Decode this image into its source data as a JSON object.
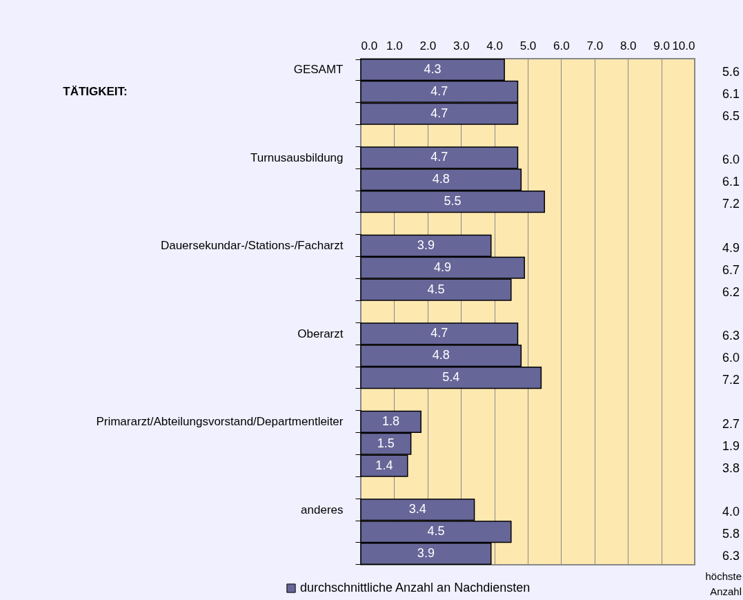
{
  "chart_data": {
    "type": "bar",
    "orientation": "horizontal",
    "categories": [
      "GESAMT",
      null,
      null,
      null,
      "Turnusausbildung",
      null,
      null,
      null,
      "Dauersekundar-/Stations-/Facharzt",
      null,
      null,
      null,
      "Oberarzt",
      null,
      null,
      null,
      "Primararzt/Abteilungsvorstand/Departmentleiter",
      null,
      null,
      null,
      "anderes",
      null,
      null
    ],
    "series": [
      {
        "name": "durchschnittliche Anzahl an Nachdiensten",
        "color": "#666699",
        "values": [
          4.3,
          4.7,
          4.7,
          null,
          4.7,
          4.8,
          5.5,
          null,
          3.9,
          4.9,
          4.5,
          null,
          4.7,
          4.8,
          5.4,
          null,
          1.8,
          1.5,
          1.4,
          null,
          3.4,
          4.5,
          3.9
        ]
      }
    ],
    "data_labels": true,
    "xlim": [
      0,
      10
    ],
    "xticks": [
      {
        "value": 0,
        "label": "0.0"
      },
      {
        "value": 1,
        "label": "1.0"
      },
      {
        "value": 2,
        "label": "2.0"
      },
      {
        "value": 3,
        "label": "3.0"
      },
      {
        "value": 4,
        "label": "4.0"
      },
      {
        "value": 5,
        "label": "5.0"
      },
      {
        "value": 6,
        "label": "6.0"
      },
      {
        "value": 7,
        "label": "7.0"
      },
      {
        "value": 8,
        "label": "8.0"
      },
      {
        "value": 9,
        "label": "9.0"
      },
      {
        "value": 10,
        "label": "10.0"
      }
    ],
    "grid": "x",
    "legend": "bottom",
    "annotations": [
      "TÄTIGKEIT:",
      "5.6",
      "6.1",
      "6.5",
      "6.0",
      "6.1",
      "7.2",
      "4.9",
      "6.7",
      "6.2",
      "6.3",
      "6.0",
      "7.2",
      "2.7",
      "1.9",
      "3.8",
      "4.0",
      "5.8",
      "6.3",
      "höchste Anzahl"
    ]
  }
}
